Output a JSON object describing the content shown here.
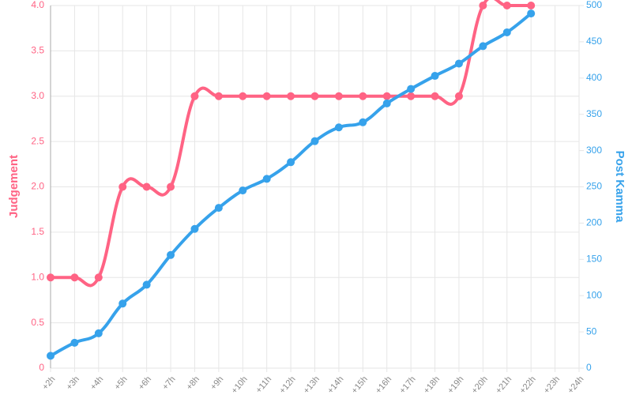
{
  "chart_data": {
    "type": "line",
    "categories": [
      "+2h",
      "+3h",
      "+4h",
      "+5h",
      "+6h",
      "+7h",
      "+8h",
      "+9h",
      "+10h",
      "+11h",
      "+12h",
      "+13h",
      "+14h",
      "+15h",
      "+16h",
      "+17h",
      "+18h",
      "+19h",
      "+20h",
      "+21h",
      "+22h",
      "+23h",
      "+24h"
    ],
    "series": [
      {
        "name": "Judgement",
        "color": "#ff6384",
        "axis": "y",
        "values": [
          1,
          1,
          1,
          2,
          2,
          2,
          3,
          3,
          3,
          3,
          3,
          3,
          3,
          3,
          3,
          3,
          3,
          3,
          4,
          4,
          4,
          null,
          null
        ]
      },
      {
        "name": "Post Kamma",
        "color": "#36a2eb",
        "axis": "y2",
        "values": [
          17,
          35,
          48,
          89,
          115,
          156,
          192,
          221,
          245,
          261,
          284,
          313,
          332,
          339,
          365,
          385,
          403,
          420,
          444,
          463,
          489,
          null,
          null
        ]
      }
    ],
    "ylabel": "Judgement",
    "y2label": "Post Kamma",
    "ylim": [
      0,
      4
    ],
    "yticks": [
      0,
      0.5,
      {
        "value": 1,
        "label": "1.0"
      },
      1.5,
      {
        "value": 2,
        "label": "2.0"
      },
      2.5,
      {
        "value": 3,
        "label": "3.0"
      },
      3.5,
      {
        "value": 4,
        "label": "4.0"
      }
    ],
    "y2lim": [
      0,
      500
    ],
    "y2ticks": [
      0,
      50,
      100,
      150,
      200,
      250,
      300,
      350,
      400,
      450,
      500
    ],
    "grid": true
  }
}
